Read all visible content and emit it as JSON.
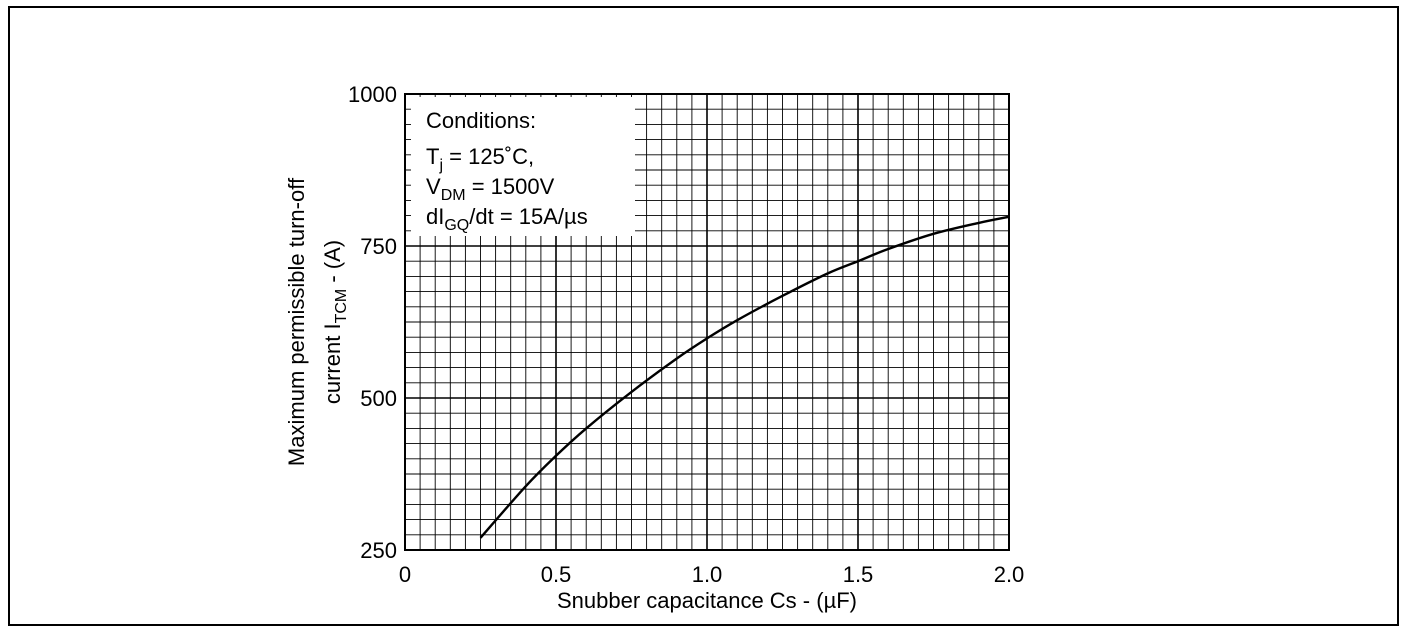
{
  "chart_data": {
    "type": "line",
    "title": "",
    "xlabel": "Snubber capacitance Cs - (µF)",
    "ylabel": {
      "line1": "Maximum permissible turn-off",
      "line2_prefix": "current I",
      "line2_sub": "TCM",
      "line2_suffix": " - (A)"
    },
    "xlim": [
      0,
      2.0
    ],
    "ylim": [
      250,
      1000
    ],
    "x_ticks": [
      0,
      0.5,
      1.0,
      1.5,
      2.0
    ],
    "x_tick_labels": [
      "0",
      "0.5",
      "1.0",
      "1.5",
      "2.0"
    ],
    "y_ticks": [
      250,
      500,
      750,
      1000
    ],
    "y_tick_labels": [
      "250",
      "500",
      "750",
      "1000"
    ],
    "grid": true,
    "x_minor_step": 0.05,
    "y_minor_step": 25,
    "annotation": {
      "heading": "Conditions:",
      "lines": [
        {
          "main": "T",
          "sub": "j",
          "rest": " = 125˚C,"
        },
        {
          "main": "V",
          "sub": "DM",
          "rest": " = 1500V"
        },
        {
          "main": "dI",
          "sub": "GQ",
          "rest": "/dt = 15A/µs"
        }
      ],
      "placement": "top-left"
    },
    "series": [
      {
        "x": [
          0.25,
          0.4,
          0.5,
          0.6,
          0.75,
          0.9,
          1.0,
          1.1,
          1.25,
          1.4,
          1.5,
          1.6,
          1.75,
          1.9,
          2.0
        ],
        "y": [
          270,
          355,
          405,
          450,
          510,
          565,
          598,
          628,
          668,
          705,
          725,
          745,
          770,
          788,
          798
        ],
        "color": "#000000"
      }
    ]
  }
}
